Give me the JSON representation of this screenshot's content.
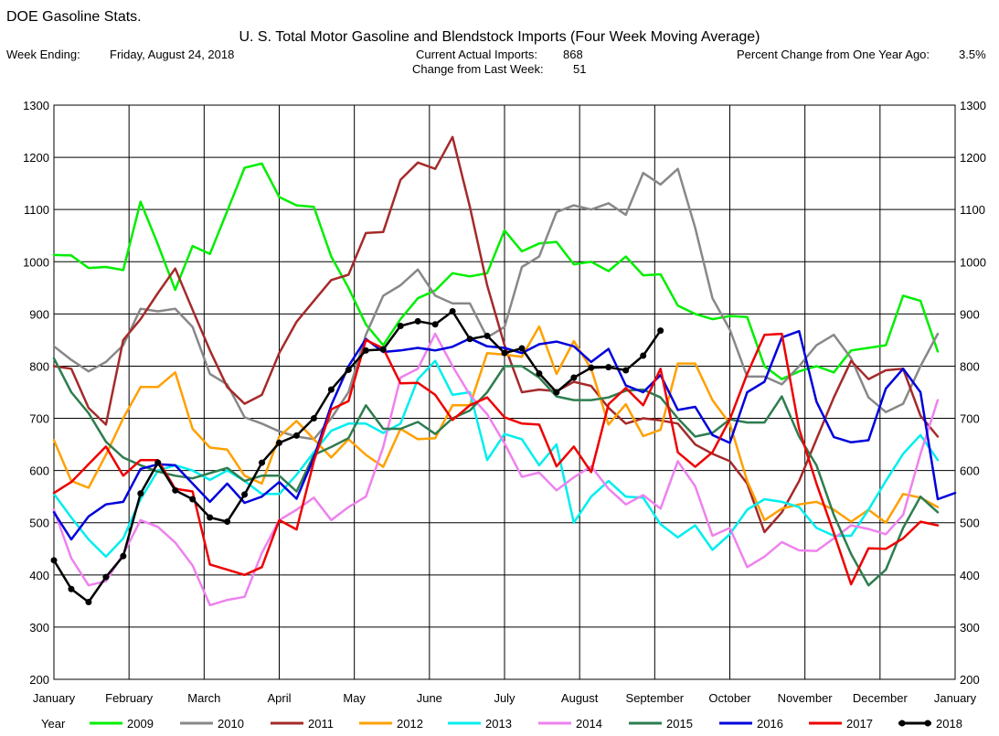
{
  "app_title": "DOE Gasoline Stats.",
  "header": {
    "week_ending_label": "Week Ending:",
    "week_ending_value": "Friday, August 24, 2018",
    "current_imports_label": "Current Actual Imports:",
    "current_imports_value": "868",
    "change_label": "Change from Last Week:",
    "change_value": "51",
    "pct_change_label": "Percent Change from One Year Ago:",
    "pct_change_value": "3.5%"
  },
  "chart_data": {
    "type": "line",
    "title": "U. S. Total Motor Gasoline and Blendstock Imports (Four Week Moving Average)",
    "xlabel": "",
    "ylabel": "",
    "ylim": [
      200,
      1300
    ],
    "y_ticks": [
      "200",
      "300",
      "400",
      "500",
      "600",
      "700",
      "800",
      "900",
      "1000",
      "1100",
      "1200",
      "1300"
    ],
    "x_ticks": [
      "January",
      "February",
      "March",
      "April",
      "May",
      "June",
      "July",
      "August",
      "September",
      "October",
      "November",
      "December",
      "January"
    ],
    "grid": true,
    "legend_position": "bottom",
    "legend_title": "Year",
    "x_unit": "weeks of year (0 = January 1, 52 = next January 1)",
    "series": [
      {
        "name": "2009",
        "color": "#00ee00",
        "marker": false,
        "x": [
          0,
          1,
          2,
          3,
          4,
          5,
          6,
          7,
          8,
          9,
          10,
          11,
          12,
          13,
          14,
          15,
          16,
          17,
          18,
          19,
          20,
          21,
          22,
          23,
          24,
          25,
          26,
          27,
          28,
          29,
          30,
          31,
          32,
          33,
          34,
          35,
          36,
          37,
          38,
          39,
          40,
          41,
          42,
          43,
          44,
          45,
          46,
          47,
          48,
          49,
          50,
          51
        ],
        "y": [
          1013,
          1012,
          988,
          990,
          984,
          1115,
          1033,
          946,
          1030,
          1015,
          1097,
          1180,
          1188,
          1124,
          1108,
          1105,
          1010,
          950,
          880,
          840,
          890,
          930,
          945,
          978,
          972,
          978,
          1060,
          1020,
          1035,
          1038,
          995,
          1000,
          982,
          1010,
          974,
          976,
          916,
          900,
          890,
          896,
          894,
          800,
          775,
          790,
          800,
          788,
          830,
          835,
          840,
          935,
          925,
          828
        ]
      },
      {
        "name": "2010",
        "color": "#888888",
        "marker": false,
        "x": [
          0,
          1,
          2,
          3,
          4,
          5,
          6,
          7,
          8,
          9,
          10,
          11,
          12,
          13,
          14,
          15,
          16,
          17,
          18,
          19,
          20,
          21,
          22,
          23,
          24,
          25,
          26,
          27,
          28,
          29,
          30,
          31,
          32,
          33,
          34,
          35,
          36,
          37,
          38,
          39,
          40,
          41,
          42,
          43,
          44,
          45,
          46,
          47,
          48,
          49,
          50,
          51
        ],
        "y": [
          838,
          812,
          790,
          808,
          840,
          910,
          905,
          910,
          875,
          785,
          765,
          702,
          690,
          675,
          665,
          660,
          700,
          750,
          860,
          935,
          955,
          985,
          935,
          920,
          920,
          855,
          875,
          990,
          1010,
          1095,
          1108,
          1100,
          1112,
          1090,
          1170,
          1148,
          1178,
          1065,
          930,
          870,
          780,
          780,
          765,
          800,
          840,
          860,
          815,
          740,
          712,
          728,
          800,
          862
        ]
      },
      {
        "name": "2011",
        "color": "#a52a2a",
        "marker": false,
        "x": [
          0,
          1,
          2,
          3,
          4,
          5,
          6,
          7,
          8,
          9,
          10,
          11,
          12,
          13,
          14,
          15,
          16,
          17,
          18,
          19,
          20,
          21,
          22,
          23,
          24,
          25,
          26,
          27,
          28,
          29,
          30,
          31,
          32,
          33,
          34,
          35,
          36,
          37,
          38,
          39,
          40,
          41,
          42,
          43,
          44,
          45,
          46,
          47,
          48,
          49,
          50,
          51
        ],
        "y": [
          800,
          795,
          720,
          688,
          850,
          890,
          940,
          987,
          908,
          830,
          760,
          728,
          745,
          825,
          885,
          925,
          965,
          975,
          1055,
          1057,
          1157,
          1190,
          1178,
          1239,
          1105,
          955,
          840,
          750,
          755,
          752,
          770,
          762,
          720,
          690,
          700,
          696,
          690,
          650,
          632,
          618,
          575,
          482,
          520,
          580,
          660,
          740,
          810,
          775,
          792,
          795,
          705,
          665
        ]
      },
      {
        "name": "2012",
        "color": "#ffa000",
        "marker": false,
        "x": [
          0,
          1,
          2,
          3,
          4,
          5,
          6,
          7,
          8,
          9,
          10,
          11,
          12,
          13,
          14,
          15,
          16,
          17,
          18,
          19,
          20,
          21,
          22,
          23,
          24,
          25,
          26,
          27,
          28,
          29,
          30,
          31,
          32,
          33,
          34,
          35,
          36,
          37,
          38,
          39,
          40,
          41,
          42,
          43,
          44,
          45,
          46,
          47,
          48,
          49,
          50,
          51
        ],
        "y": [
          658,
          580,
          567,
          630,
          700,
          760,
          760,
          788,
          680,
          644,
          640,
          590,
          575,
          665,
          695,
          660,
          625,
          660,
          630,
          607,
          680,
          660,
          662,
          725,
          725,
          825,
          822,
          818,
          876,
          785,
          848,
          795,
          688,
          727,
          666,
          678,
          805,
          805,
          735,
          690,
          580,
          505,
          527,
          535,
          540,
          525,
          502,
          525,
          500,
          555,
          548,
          530
        ]
      },
      {
        "name": "2013",
        "color": "#00eeee",
        "marker": false,
        "x": [
          0,
          1,
          2,
          3,
          4,
          5,
          6,
          7,
          8,
          9,
          10,
          11,
          12,
          13,
          14,
          15,
          16,
          17,
          18,
          19,
          20,
          21,
          22,
          23,
          24,
          25,
          26,
          27,
          28,
          29,
          30,
          31,
          32,
          33,
          34,
          35,
          36,
          37,
          38,
          39,
          40,
          41,
          42,
          43,
          44,
          45,
          46,
          47,
          48,
          49,
          50,
          51
        ],
        "y": [
          555,
          510,
          468,
          435,
          470,
          545,
          600,
          610,
          600,
          582,
          600,
          580,
          555,
          555,
          592,
          635,
          676,
          690,
          690,
          672,
          690,
          775,
          810,
          745,
          750,
          620,
          670,
          660,
          610,
          650,
          500,
          550,
          580,
          550,
          548,
          497,
          472,
          495,
          448,
          478,
          525,
          545,
          540,
          530,
          490,
          475,
          475,
          525,
          580,
          632,
          668,
          620
        ]
      },
      {
        "name": "2014",
        "color": "#ee82ee",
        "marker": false,
        "x": [
          0,
          1,
          2,
          3,
          4,
          5,
          6,
          7,
          8,
          9,
          10,
          11,
          12,
          13,
          14,
          15,
          16,
          17,
          18,
          19,
          20,
          21,
          22,
          23,
          24,
          25,
          26,
          27,
          28,
          29,
          30,
          31,
          32,
          33,
          34,
          35,
          36,
          37,
          38,
          39,
          40,
          41,
          42,
          43,
          44,
          45,
          46,
          47,
          48,
          49,
          50,
          51
        ],
        "y": [
          525,
          432,
          380,
          388,
          440,
          505,
          492,
          462,
          418,
          342,
          352,
          358,
          442,
          505,
          525,
          548,
          505,
          530,
          550,
          645,
          778,
          795,
          862,
          800,
          745,
          708,
          652,
          588,
          596,
          562,
          587,
          608,
          565,
          535,
          553,
          527,
          618,
          570,
          475,
          490,
          415,
          435,
          463,
          447,
          446,
          470,
          495,
          488,
          478,
          515,
          632,
          735
        ]
      },
      {
        "name": "2015",
        "color": "#2e7d4f",
        "marker": false,
        "x": [
          0,
          1,
          2,
          3,
          4,
          5,
          6,
          7,
          8,
          9,
          10,
          11,
          12,
          13,
          14,
          15,
          16,
          17,
          18,
          19,
          20,
          21,
          22,
          23,
          24,
          25,
          26,
          27,
          28,
          29,
          30,
          31,
          32,
          33,
          34,
          35,
          36,
          37,
          38,
          39,
          40,
          41,
          42,
          43,
          44,
          45,
          46,
          47,
          48,
          49,
          50,
          51
        ],
        "y": [
          815,
          750,
          710,
          655,
          625,
          610,
          598,
          590,
          585,
          595,
          605,
          580,
          590,
          590,
          560,
          630,
          645,
          662,
          725,
          680,
          680,
          693,
          670,
          700,
          715,
          750,
          800,
          800,
          778,
          742,
          735,
          735,
          740,
          753,
          755,
          740,
          700,
          665,
          672,
          698,
          692,
          692,
          742,
          665,
          610,
          515,
          440,
          380,
          410,
          490,
          550,
          520
        ]
      },
      {
        "name": "2016",
        "color": "#0000dd",
        "marker": false,
        "x": [
          0,
          1,
          2,
          3,
          4,
          5,
          6,
          7,
          8,
          9,
          10,
          11,
          12,
          13,
          14,
          15,
          16,
          17,
          18,
          19,
          20,
          21,
          22,
          23,
          24,
          25,
          26,
          27,
          28,
          29,
          30,
          31,
          32,
          33,
          34,
          35,
          36,
          37,
          38,
          39,
          40,
          41,
          42,
          43,
          44,
          45,
          46,
          47,
          48,
          49,
          50,
          51,
          52
        ],
        "y": [
          520,
          468,
          512,
          535,
          540,
          603,
          612,
          610,
          575,
          540,
          575,
          538,
          550,
          578,
          546,
          625,
          725,
          800,
          852,
          827,
          830,
          835,
          830,
          837,
          853,
          838,
          835,
          825,
          842,
          847,
          838,
          808,
          833,
          763,
          750,
          783,
          716,
          722,
          668,
          653,
          750,
          770,
          855,
          867,
          732,
          664,
          654,
          658,
          757,
          795,
          750,
          545,
          557
        ]
      },
      {
        "name": "2017",
        "color": "#ee0000",
        "marker": false,
        "x": [
          0,
          1,
          2,
          3,
          4,
          5,
          6,
          7,
          8,
          9,
          10,
          11,
          12,
          13,
          14,
          15,
          16,
          17,
          18,
          19,
          20,
          21,
          22,
          23,
          24,
          25,
          26,
          27,
          28,
          29,
          30,
          31,
          32,
          33,
          34,
          35,
          36,
          37,
          38,
          39,
          40,
          41,
          42,
          43,
          44,
          45,
          46,
          47,
          48,
          49,
          50,
          51
        ],
        "y": [
          557,
          578,
          612,
          646,
          590,
          620,
          620,
          565,
          560,
          420,
          410,
          400,
          415,
          505,
          487,
          618,
          717,
          733,
          850,
          834,
          767,
          768,
          745,
          697,
          725,
          740,
          702,
          690,
          688,
          608,
          646,
          597,
          727,
          758,
          725,
          795,
          635,
          607,
          635,
          698,
          785,
          860,
          862,
          680,
          575,
          480,
          382,
          451,
          450,
          470,
          502,
          495
        ]
      },
      {
        "name": "2018",
        "color": "#000000",
        "marker": true,
        "x": [
          0,
          1,
          2,
          3,
          4,
          5,
          6,
          7,
          8,
          9,
          10,
          11,
          12,
          13,
          14,
          15,
          16,
          17,
          18,
          19,
          20,
          21,
          22,
          23,
          24,
          25,
          26,
          27,
          28,
          29,
          30,
          31,
          32,
          33,
          34,
          35
        ],
        "y": [
          428,
          373,
          348,
          396,
          436,
          556,
          615,
          562,
          545,
          510,
          502,
          554,
          615,
          653,
          667,
          700,
          755,
          793,
          830,
          832,
          877,
          886,
          880,
          905,
          852,
          858,
          825,
          834,
          786,
          750,
          778,
          797,
          798,
          792,
          820,
          868
        ]
      }
    ]
  }
}
